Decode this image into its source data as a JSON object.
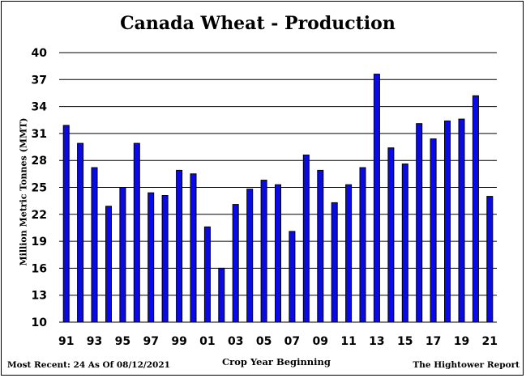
{
  "chart_data": {
    "type": "bar",
    "title": "Canada Wheat - Production",
    "ylabel": "Million Metric Tonnes (MMT)",
    "xlabel": "Crop Year Beginning",
    "ylim": [
      10,
      40
    ],
    "yticks": [
      "10",
      "13",
      "16",
      "19",
      "22",
      "25",
      "28",
      "31",
      "34",
      "37",
      "40"
    ],
    "grid": true,
    "bar_color": "#0a0ae6",
    "categories": [
      "91",
      "92",
      "93",
      "94",
      "95",
      "96",
      "97",
      "98",
      "99",
      "00",
      "01",
      "02",
      "03",
      "04",
      "05",
      "06",
      "07",
      "08",
      "09",
      "10",
      "11",
      "12",
      "13",
      "14",
      "15",
      "16",
      "17",
      "18",
      "19",
      "20",
      "21"
    ],
    "xtick_labels": [
      "91",
      "93",
      "95",
      "97",
      "99",
      "01",
      "03",
      "05",
      "07",
      "09",
      "11",
      "13",
      "15",
      "17",
      "19",
      "21"
    ],
    "values": [
      31.9,
      29.9,
      27.2,
      22.9,
      25.0,
      29.9,
      24.4,
      24.1,
      26.9,
      26.5,
      20.6,
      16.0,
      23.1,
      24.8,
      25.8,
      25.3,
      20.1,
      28.6,
      26.9,
      23.3,
      25.3,
      27.2,
      37.6,
      29.4,
      27.6,
      32.1,
      30.4,
      32.4,
      32.6,
      35.2,
      24.0
    ]
  },
  "footer": {
    "left": "Most Recent: 24 As Of 08/12/2021",
    "right": "The Hightower Report"
  }
}
